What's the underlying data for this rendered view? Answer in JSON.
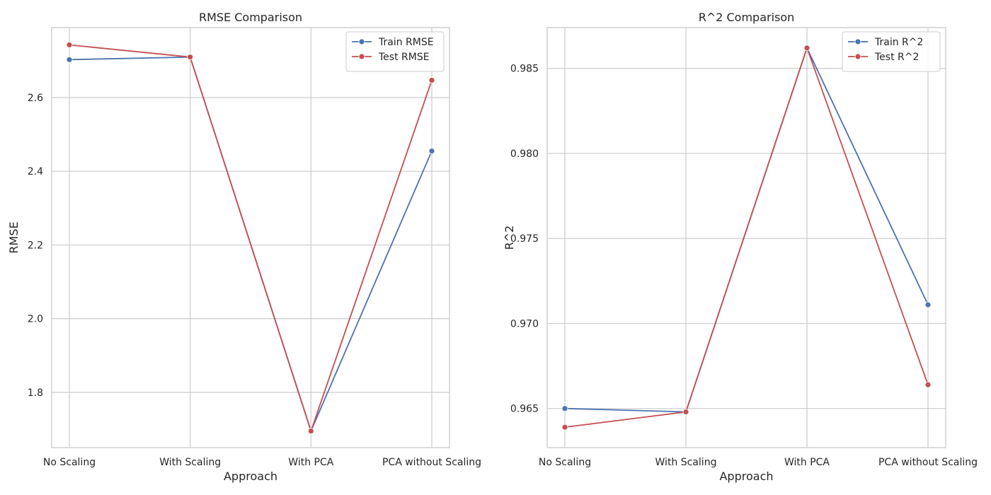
{
  "chart_data": [
    {
      "type": "line",
      "title": "RMSE Comparison",
      "xlabel": "Approach",
      "ylabel": "RMSE",
      "categories": [
        "No Scaling",
        "With Scaling",
        "With PCA",
        "PCA without Scaling"
      ],
      "ylim": [
        1.65,
        2.79
      ],
      "yticks": [
        1.8,
        2.0,
        2.2,
        2.4,
        2.6
      ],
      "yticklabels": [
        "1.8",
        "2.0",
        "2.2",
        "2.4",
        "2.6"
      ],
      "grid": true,
      "legend": "upper-right",
      "series": [
        {
          "name": "Train RMSE",
          "color": "#4c72b0",
          "marker": "circle",
          "values": [
            2.703,
            2.71,
            1.695,
            2.455
          ]
        },
        {
          "name": "Test RMSE",
          "color": "#c44e52",
          "marker": "circle",
          "values": [
            2.743,
            2.71,
            1.695,
            2.647
          ]
        }
      ]
    },
    {
      "type": "line",
      "title": "R^2 Comparison",
      "xlabel": "Approach",
      "ylabel": "R^2",
      "categories": [
        "No Scaling",
        "With Scaling",
        "With PCA",
        "PCA without Scaling"
      ],
      "ylim": [
        0.9627,
        0.9874
      ],
      "yticks": [
        0.965,
        0.97,
        0.975,
        0.98,
        0.985
      ],
      "yticklabels": [
        "0.965",
        "0.970",
        "0.975",
        "0.980",
        "0.985"
      ],
      "grid": true,
      "legend": "upper-right",
      "series": [
        {
          "name": "Train R^2",
          "color": "#4c72b0",
          "marker": "circle",
          "values": [
            0.965,
            0.9648,
            0.9862,
            0.9711
          ]
        },
        {
          "name": "Test R^2",
          "color": "#c44e52",
          "marker": "circle",
          "values": [
            0.9639,
            0.9648,
            0.9862,
            0.9664
          ]
        }
      ]
    }
  ]
}
